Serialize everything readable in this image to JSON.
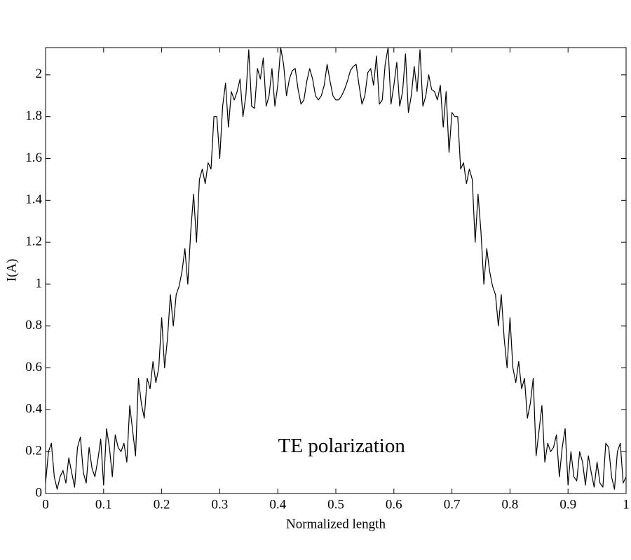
{
  "chart_data": {
    "type": "line",
    "annotation": "TE polarization",
    "annotation_x": 0.51,
    "annotation_y": 0.22,
    "xlabel": "Normalized length",
    "ylabel": "I(A)",
    "color": "#000000",
    "xlim": [
      0,
      1
    ],
    "ylim": [
      0,
      2.13
    ],
    "xticks": [
      0,
      0.1,
      0.2,
      0.3,
      0.4,
      0.5,
      0.6,
      0.7,
      0.8,
      0.9,
      1
    ],
    "yticks": [
      0,
      0.2,
      0.4,
      0.6,
      0.8,
      1,
      1.2,
      1.4,
      1.6,
      1.8,
      2
    ],
    "x": [
      0,
      0.005,
      0.01,
      0.015,
      0.02,
      0.025,
      0.03,
      0.035,
      0.04,
      0.045,
      0.05,
      0.055,
      0.06,
      0.065,
      0.07,
      0.075,
      0.08,
      0.085,
      0.09,
      0.095,
      0.1,
      0.105,
      0.11,
      0.115,
      0.12,
      0.125,
      0.13,
      0.135,
      0.14,
      0.145,
      0.15,
      0.155,
      0.16,
      0.165,
      0.17,
      0.175,
      0.18,
      0.185,
      0.19,
      0.195,
      0.2,
      0.205,
      0.21,
      0.215,
      0.22,
      0.225,
      0.23,
      0.235,
      0.24,
      0.245,
      0.25,
      0.255,
      0.26,
      0.265,
      0.27,
      0.275,
      0.28,
      0.285,
      0.29,
      0.295,
      0.3,
      0.305,
      0.31,
      0.315,
      0.32,
      0.325,
      0.33,
      0.335,
      0.34,
      0.345,
      0.35,
      0.355,
      0.36,
      0.365,
      0.37,
      0.375,
      0.38,
      0.385,
      0.39,
      0.395,
      0.4,
      0.405,
      0.41,
      0.415,
      0.42,
      0.425,
      0.43,
      0.435,
      0.44,
      0.445,
      0.45,
      0.455,
      0.46,
      0.465,
      0.47,
      0.475,
      0.48,
      0.485,
      0.49,
      0.495,
      0.5,
      0.505,
      0.51,
      0.515,
      0.52,
      0.525,
      0.53,
      0.535,
      0.54,
      0.545,
      0.55,
      0.555,
      0.56,
      0.565,
      0.57,
      0.575,
      0.58,
      0.585,
      0.59,
      0.595,
      0.6,
      0.605,
      0.61,
      0.615,
      0.62,
      0.625,
      0.63,
      0.635,
      0.64,
      0.645,
      0.65,
      0.655,
      0.66,
      0.665,
      0.67,
      0.675,
      0.68,
      0.685,
      0.69,
      0.695,
      0.7,
      0.705,
      0.71,
      0.715,
      0.72,
      0.725,
      0.73,
      0.735,
      0.74,
      0.745,
      0.75,
      0.755,
      0.76,
      0.765,
      0.77,
      0.775,
      0.78,
      0.785,
      0.79,
      0.795,
      0.8,
      0.805,
      0.81,
      0.815,
      0.82,
      0.825,
      0.83,
      0.835,
      0.84,
      0.845,
      0.85,
      0.855,
      0.86,
      0.865,
      0.87,
      0.875,
      0.88,
      0.885,
      0.89,
      0.895,
      0.9,
      0.905,
      0.91,
      0.915,
      0.92,
      0.925,
      0.93,
      0.935,
      0.94,
      0.945,
      0.95,
      0.955,
      0.96,
      0.965,
      0.97,
      0.975,
      0.98,
      0.985,
      0.99,
      0.995,
      1
    ],
    "values": [
      0.05,
      0.2,
      0.24,
      0.08,
      0.02,
      0.08,
      0.11,
      0.05,
      0.17,
      0.1,
      0.03,
      0.22,
      0.27,
      0.1,
      0.05,
      0.22,
      0.12,
      0.08,
      0.16,
      0.26,
      0.04,
      0.31,
      0.22,
      0.08,
      0.28,
      0.22,
      0.2,
      0.24,
      0.15,
      0.42,
      0.3,
      0.18,
      0.55,
      0.43,
      0.36,
      0.55,
      0.5,
      0.63,
      0.53,
      0.6,
      0.84,
      0.6,
      0.74,
      0.95,
      0.8,
      0.95,
      0.99,
      1.06,
      1.17,
      1.0,
      1.25,
      1.43,
      1.2,
      1.5,
      1.55,
      1.48,
      1.58,
      1.55,
      1.8,
      1.8,
      1.6,
      1.85,
      1.96,
      1.75,
      1.92,
      1.88,
      1.92,
      1.98,
      1.8,
      1.9,
      2.12,
      1.85,
      1.84,
      2.03,
      1.98,
      2.08,
      1.85,
      1.9,
      2.03,
      1.85,
      1.95,
      2.13,
      2.05,
      1.9,
      1.98,
      2.02,
      2.03,
      1.93,
      1.86,
      1.88,
      1.97,
      2.03,
      1.98,
      1.9,
      1.88,
      1.9,
      1.95,
      2.05,
      1.97,
      1.9,
      1.88,
      1.88,
      1.9,
      1.93,
      1.97,
      2.02,
      2.04,
      2.05,
      1.95,
      1.86,
      1.9,
      2.01,
      2.03,
      1.95,
      2.09,
      1.86,
      1.88,
      2.05,
      2.13,
      1.86,
      1.95,
      2.06,
      1.85,
      1.92,
      2.1,
      1.82,
      1.9,
      2.04,
      1.92,
      2.12,
      1.85,
      1.9,
      2.0,
      1.93,
      1.92,
      1.88,
      1.95,
      1.75,
      1.92,
      1.63,
      1.82,
      1.8,
      1.8,
      1.55,
      1.58,
      1.48,
      1.55,
      1.5,
      1.2,
      1.43,
      1.25,
      1.0,
      1.17,
      1.06,
      0.99,
      0.95,
      0.8,
      0.95,
      0.74,
      0.6,
      0.84,
      0.6,
      0.53,
      0.63,
      0.5,
      0.55,
      0.36,
      0.43,
      0.55,
      0.18,
      0.3,
      0.42,
      0.15,
      0.24,
      0.2,
      0.22,
      0.28,
      0.08,
      0.22,
      0.31,
      0.04,
      0.2,
      0.08,
      0.06,
      0.2,
      0.15,
      0.04,
      0.18,
      0.1,
      0.03,
      0.15,
      0.05,
      0.03,
      0.24,
      0.22,
      0.08,
      0.02,
      0.2,
      0.24,
      0.05,
      0.08
    ]
  }
}
